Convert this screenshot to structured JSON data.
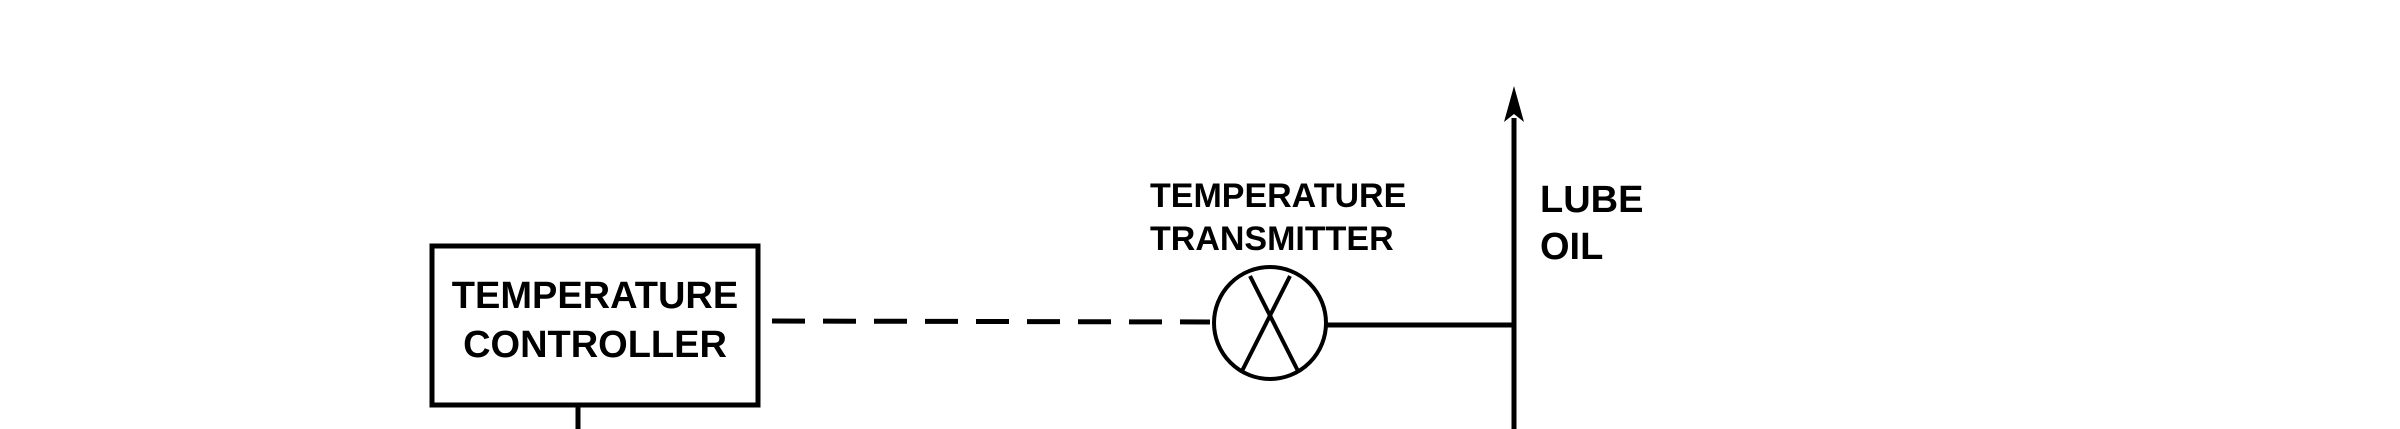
{
  "diagram": {
    "controller": {
      "line1": "TEMPERATURE",
      "line2": "CONTROLLER"
    },
    "transmitter": {
      "line1": "TEMPERATURE",
      "line2": "TRANSMITTER"
    },
    "pipe": {
      "line1": "LUBE",
      "line2": "OIL"
    }
  },
  "colors": {
    "ink": "#000000",
    "background": "#ffffff"
  }
}
